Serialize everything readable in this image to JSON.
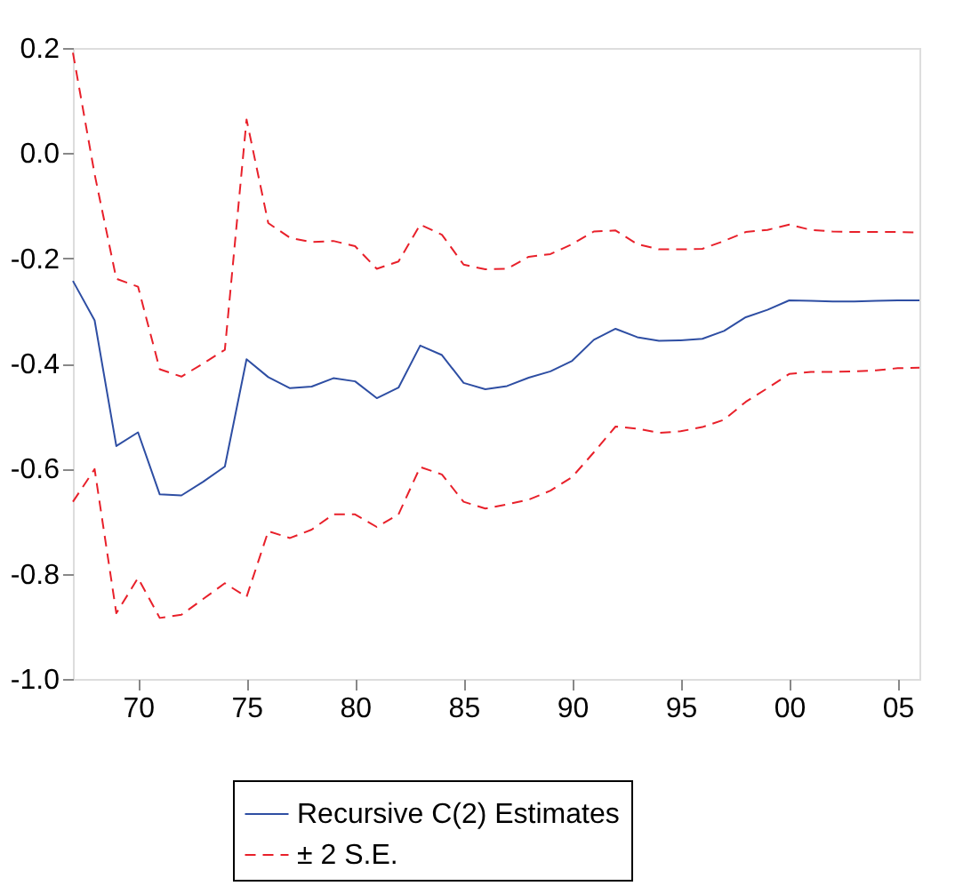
{
  "chart_data": {
    "type": "line",
    "x": [
      1967,
      1968,
      1969,
      1970,
      1971,
      1972,
      1973,
      1974,
      1975,
      1976,
      1977,
      1978,
      1979,
      1980,
      1981,
      1982,
      1983,
      1984,
      1985,
      1986,
      1987,
      1988,
      1989,
      1990,
      1991,
      1992,
      1993,
      1994,
      1995,
      1996,
      1997,
      1998,
      1999,
      2000,
      2001,
      2002,
      2003,
      2004,
      2005,
      2006
    ],
    "series": [
      {
        "name": "Recursive C(2) Estimates",
        "color": "#2e4ea3",
        "line_style": "solid",
        "values": [
          -0.243,
          -0.318,
          -0.557,
          -0.531,
          -0.649,
          -0.651,
          -0.625,
          -0.596,
          -0.392,
          -0.426,
          -0.447,
          -0.444,
          -0.428,
          -0.434,
          -0.466,
          -0.446,
          -0.366,
          -0.384,
          -0.437,
          -0.449,
          -0.443,
          -0.427,
          -0.415,
          -0.395,
          -0.355,
          -0.334,
          -0.35,
          -0.357,
          -0.356,
          -0.353,
          -0.338,
          -0.312,
          -0.298,
          -0.28,
          -0.281,
          -0.282,
          -0.282,
          -0.281,
          -0.28,
          -0.28
        ]
      },
      {
        "name": "± 2 S.E.",
        "color": "#e8202a",
        "line_style": "dashed",
        "values": [
          0.191,
          -0.04,
          -0.239,
          -0.254,
          -0.411,
          -0.425,
          -0.4,
          -0.374,
          0.064,
          -0.133,
          -0.161,
          -0.169,
          -0.167,
          -0.177,
          -0.22,
          -0.206,
          -0.136,
          -0.155,
          -0.212,
          -0.221,
          -0.22,
          -0.197,
          -0.192,
          -0.173,
          -0.149,
          -0.147,
          -0.173,
          -0.183,
          -0.183,
          -0.182,
          -0.167,
          -0.15,
          -0.146,
          -0.136,
          -0.146,
          -0.149,
          -0.15,
          -0.15,
          -0.15,
          -0.151
        ]
      },
      {
        "color": "#e8202a",
        "line_style": "dashed",
        "values": [
          -0.663,
          -0.601,
          -0.875,
          -0.808,
          -0.884,
          -0.878,
          -0.848,
          -0.818,
          -0.844,
          -0.719,
          -0.732,
          -0.716,
          -0.687,
          -0.687,
          -0.711,
          -0.687,
          -0.597,
          -0.611,
          -0.663,
          -0.676,
          -0.668,
          -0.659,
          -0.642,
          -0.616,
          -0.569,
          -0.52,
          -0.524,
          -0.532,
          -0.529,
          -0.521,
          -0.507,
          -0.473,
          -0.447,
          -0.42,
          -0.416,
          -0.416,
          -0.415,
          -0.413,
          -0.409,
          -0.408
        ]
      }
    ],
    "xlim": [
      1967,
      2006
    ],
    "xticks": [
      {
        "value": 1970,
        "label": "70"
      },
      {
        "value": 1975,
        "label": "75"
      },
      {
        "value": 1980,
        "label": "80"
      },
      {
        "value": 1985,
        "label": "85"
      },
      {
        "value": 1990,
        "label": "90"
      },
      {
        "value": 1995,
        "label": "95"
      },
      {
        "value": 2000,
        "label": "00"
      },
      {
        "value": 2005,
        "label": "05"
      }
    ],
    "ylim": [
      -1.0,
      0.2
    ],
    "yticks": [
      {
        "value": -1.0,
        "label": "-1.0"
      },
      -0.8,
      -0.6,
      -0.4,
      -0.2,
      {
        "value": 0,
        "label": "0.0"
      },
      0.2
    ],
    "grid": false,
    "legend": "bottom"
  }
}
